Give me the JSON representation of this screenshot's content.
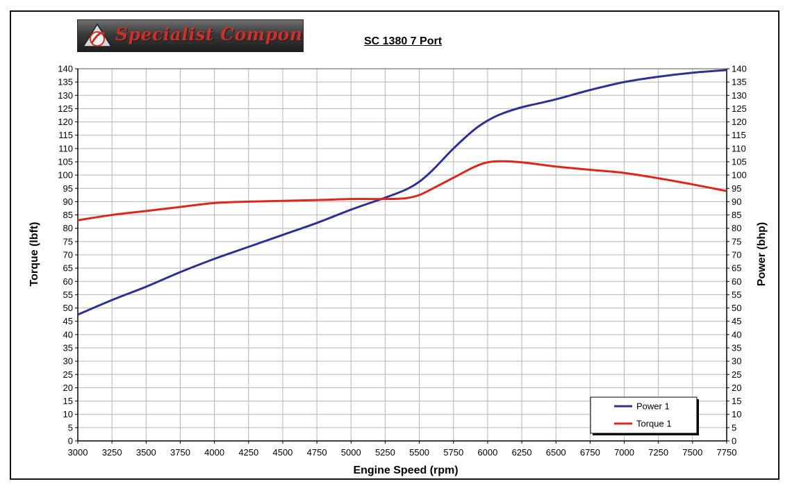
{
  "logo": {
    "text": "Specialist Components",
    "emblem_letters": "SC"
  },
  "chart_data": {
    "type": "line",
    "title": "SC 1380 7 Port",
    "xlabel": "Engine Speed (rpm)",
    "ylabel_left": "Torque (lbft)",
    "ylabel_right": "Power (bhp)",
    "xlim": [
      3000,
      7750
    ],
    "x_ticks": [
      3000,
      3250,
      3500,
      3750,
      4000,
      4250,
      4500,
      4750,
      5000,
      5250,
      5500,
      5750,
      6000,
      6250,
      6500,
      6750,
      7000,
      7250,
      7500,
      7750
    ],
    "ylim": [
      0,
      140
    ],
    "y_ticks": [
      0,
      5,
      10,
      15,
      20,
      25,
      30,
      35,
      40,
      45,
      50,
      55,
      60,
      65,
      70,
      75,
      80,
      85,
      90,
      95,
      100,
      105,
      110,
      115,
      120,
      125,
      130,
      135,
      140
    ],
    "grid": true,
    "legend_position": "bottom-right",
    "series": [
      {
        "name": "Power 1",
        "axis": "right",
        "color": "#2e3192",
        "x": [
          3000,
          3250,
          3500,
          3750,
          4000,
          4250,
          4500,
          4750,
          5000,
          5250,
          5400,
          5500,
          5600,
          5750,
          5900,
          6000,
          6100,
          6250,
          6500,
          6750,
          7000,
          7250,
          7500,
          7750
        ],
        "y": [
          47.5,
          53,
          58,
          63.5,
          68.5,
          73,
          77.5,
          82,
          87,
          91.5,
          94.5,
          97.5,
          102,
          110,
          117,
          120.5,
          123,
          125.5,
          128.5,
          132,
          135,
          137,
          138.5,
          139.5
        ]
      },
      {
        "name": "Torque 1",
        "axis": "left",
        "color": "#e0251b",
        "x": [
          3000,
          3250,
          3500,
          3750,
          4000,
          4250,
          4500,
          4750,
          5000,
          5250,
          5400,
          5500,
          5600,
          5750,
          5900,
          6000,
          6100,
          6250,
          6500,
          6750,
          7000,
          7250,
          7500,
          7750
        ],
        "y": [
          83,
          85,
          86.5,
          88,
          89.5,
          90,
          90.3,
          90.6,
          91,
          91,
          91.3,
          92.5,
          95,
          99,
          103,
          104.8,
          105.2,
          104.8,
          103.2,
          102,
          100.8,
          98.8,
          96.5,
          94
        ]
      }
    ]
  }
}
